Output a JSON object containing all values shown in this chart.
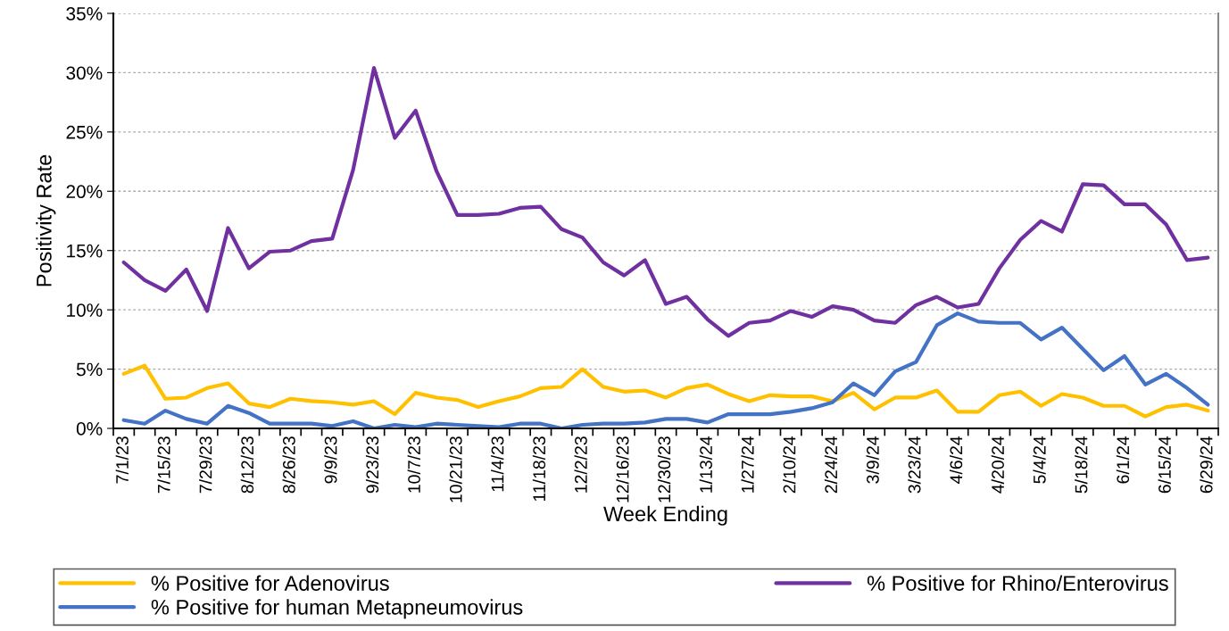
{
  "chart_data": {
    "type": "line",
    "xlabel": "Week Ending",
    "ylabel": "Positivity Rate",
    "categories": [
      "7/1/23",
      null,
      "7/15/23",
      null,
      "7/29/23",
      null,
      "8/12/23",
      null,
      "8/26/23",
      null,
      "9/9/23",
      null,
      "9/23/23",
      null,
      "10/7/23",
      null,
      "10/21/23",
      null,
      "11/4/23",
      null,
      "11/18/23",
      null,
      "12/2/23",
      null,
      "12/16/23",
      null,
      "12/30/23",
      null,
      "1/13/24",
      null,
      "1/27/24",
      null,
      "2/10/24",
      null,
      "2/24/24",
      null,
      "3/9/24",
      null,
      "3/23/24",
      null,
      "4/6/24",
      null,
      "4/20/24",
      null,
      "5/4/24",
      null,
      "5/18/24",
      null,
      "6/1/24",
      null,
      "6/15/24",
      null,
      "6/29/24"
    ],
    "series": [
      {
        "name": "% Positive for Adenovirus",
        "color": "#ffc000",
        "values": [
          4.6,
          5.3,
          2.5,
          2.6,
          3.4,
          3.8,
          2.1,
          1.8,
          2.5,
          2.3,
          2.2,
          2.0,
          2.3,
          1.2,
          3.0,
          2.6,
          2.4,
          1.8,
          2.3,
          2.7,
          3.4,
          3.5,
          5.0,
          3.5,
          3.1,
          3.2,
          2.6,
          3.4,
          3.7,
          2.9,
          2.3,
          2.8,
          2.7,
          2.7,
          2.3,
          3.0,
          1.6,
          2.6,
          2.6,
          3.2,
          1.4,
          1.4,
          2.8,
          3.1,
          1.9,
          2.9,
          2.6,
          1.9,
          1.9,
          1.0,
          1.8,
          2.0,
          1.5
        ]
      },
      {
        "name": "% Positive for human Metapneumovirus",
        "color": "#4472c4",
        "values": [
          0.7,
          0.4,
          1.5,
          0.8,
          0.4,
          1.9,
          1.3,
          0.4,
          0.4,
          0.4,
          0.2,
          0.6,
          0.0,
          0.3,
          0.1,
          0.4,
          0.3,
          0.2,
          0.1,
          0.4,
          0.4,
          0.0,
          0.3,
          0.4,
          0.4,
          0.5,
          0.8,
          0.8,
          0.5,
          1.2,
          1.2,
          1.2,
          1.4,
          1.7,
          2.2,
          3.8,
          2.8,
          4.8,
          5.6,
          8.7,
          9.7,
          9.0,
          8.9,
          8.9,
          7.5,
          8.5,
          6.7,
          4.9,
          6.1,
          3.7,
          4.6,
          3.4,
          2.0
        ]
      },
      {
        "name": "% Positive for Rhino/Enterovirus",
        "color": "#7030a0",
        "values": [
          14.0,
          12.5,
          11.6,
          13.4,
          9.9,
          16.9,
          13.5,
          14.9,
          15.0,
          15.8,
          16.0,
          21.8,
          30.4,
          24.5,
          26.8,
          21.7,
          18.0,
          18.0,
          18.1,
          18.6,
          18.7,
          16.8,
          16.1,
          14.0,
          12.9,
          14.2,
          10.5,
          11.1,
          9.2,
          7.8,
          8.9,
          9.1,
          9.9,
          9.4,
          10.3,
          10.0,
          9.1,
          8.9,
          10.4,
          11.1,
          10.2,
          10.5,
          13.5,
          15.9,
          17.5,
          16.6,
          20.6,
          20.5,
          18.9,
          18.9,
          17.2,
          14.2,
          14.4
        ]
      }
    ],
    "ylim": [
      0,
      35
    ],
    "yticks": [
      {
        "value": 0,
        "label": "0%"
      },
      {
        "value": 5,
        "label": "5%"
      },
      {
        "value": 10,
        "label": "10%"
      },
      {
        "value": 15,
        "label": "15%"
      },
      {
        "value": 20,
        "label": "20%"
      },
      {
        "value": 25,
        "label": "25%"
      },
      {
        "value": 30,
        "label": "30%"
      },
      {
        "value": 35,
        "label": "35%"
      }
    ],
    "grid": "y",
    "legend": "bottom",
    "marker": "none",
    "line_style": "solid"
  }
}
